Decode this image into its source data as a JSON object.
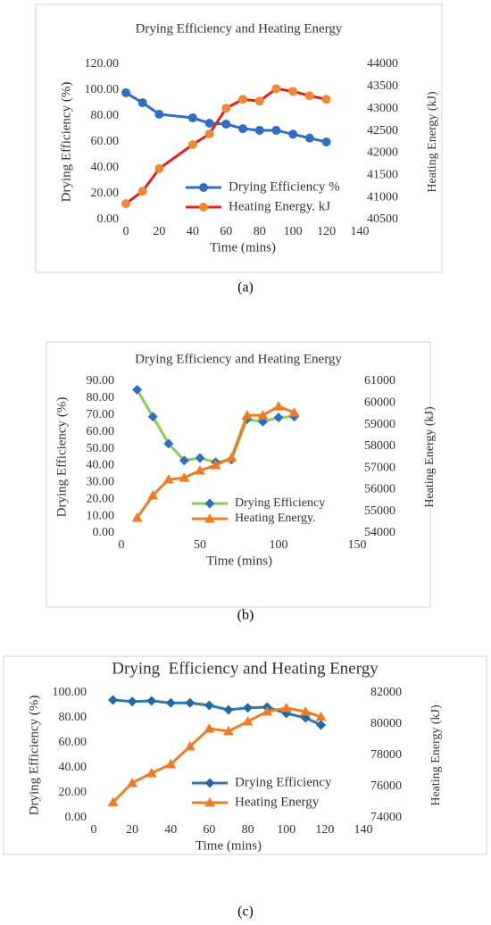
{
  "chart_data": [
    {
      "type": "line",
      "title": "Drying Efficiency and Heating Energy",
      "panel_label": "(a)",
      "xlabel": "Time (mins)",
      "ylabel": "Drying Efficiency (%)",
      "y2label": "Heating Energy (kJ)",
      "x": [
        0,
        10,
        20,
        40,
        50,
        60,
        70,
        80,
        90,
        100,
        110,
        120
      ],
      "xlim": [
        0,
        140
      ],
      "xticks": [
        0,
        20,
        40,
        60,
        80,
        100,
        120,
        140
      ],
      "ylim": [
        0,
        120
      ],
      "yticks": [
        {
          "value": 0,
          "label": "0.00"
        },
        {
          "value": 20,
          "label": "20.00"
        },
        {
          "value": 40,
          "label": "40.00"
        },
        {
          "value": 60,
          "label": "60.00"
        },
        {
          "value": 80,
          "label": "80.00"
        },
        {
          "value": 100,
          "label": "100.00"
        },
        {
          "value": 120,
          "label": "120.00"
        }
      ],
      "y2lim": [
        40500,
        44000
      ],
      "y2ticks": [
        40500,
        41000,
        41500,
        42000,
        42500,
        43000,
        43500,
        44000
      ],
      "series": [
        {
          "name": "Drying Efficiency %",
          "color": "#2e6fc4",
          "marker_color": "#2e6fc4",
          "marker": "circle",
          "values": [
            98,
            90.3,
            81.4,
            78.6,
            74.5,
            73.8,
            70.3,
            69,
            69,
            66,
            63,
            60
          ]
        },
        {
          "name": "Heating Energy. kJ",
          "color": "#e3211c",
          "marker_color": "#f08a30",
          "marker": "circle",
          "axis": "y2",
          "values": [
            40860,
            41140,
            41650,
            42190,
            42430,
            43010,
            43210,
            43170,
            43450,
            43390,
            43290,
            43210
          ]
        }
      ]
    },
    {
      "type": "line",
      "title": "Drying Efficiency and Heating Energy",
      "panel_label": "(b)",
      "xlabel": "Time (mins)",
      "ylabel": "Drying Efficiency (%)",
      "y2label": "Heating Energy (kJ)",
      "x": [
        10,
        20,
        30,
        40,
        50,
        60,
        70,
        80,
        90,
        100,
        110
      ],
      "xlim": [
        0,
        150
      ],
      "xticks": [
        0,
        50,
        100,
        150
      ],
      "ylim": [
        0,
        90
      ],
      "yticks": [
        {
          "value": 0,
          "label": "0.00"
        },
        {
          "value": 10,
          "label": "10.00"
        },
        {
          "value": 20,
          "label": "20.00"
        },
        {
          "value": 30,
          "label": "30.00"
        },
        {
          "value": 40,
          "label": "40.00"
        },
        {
          "value": 50,
          "label": "50.00"
        },
        {
          "value": 60,
          "label": "60.00"
        },
        {
          "value": 70,
          "label": "70.00"
        },
        {
          "value": 80,
          "label": "80.00"
        },
        {
          "value": 90,
          "label": "90.00"
        }
      ],
      "y2lim": [
        54000,
        61000
      ],
      "y2ticks": [
        54000,
        55000,
        56000,
        57000,
        58000,
        59000,
        60000,
        61000
      ],
      "series": [
        {
          "name": "Drying Efficiency",
          "color": "#7fd34b",
          "marker_color": "#2e6fc4",
          "marker": "diamond",
          "values": [
            85,
            69,
            53,
            43,
            44.5,
            42,
            43.5,
            67.5,
            66,
            68.5,
            69
          ]
        },
        {
          "name": "Heating Energy.",
          "color": "#f07c22",
          "marker_color": "#f07c22",
          "marker": "triangle",
          "axis": "y2",
          "values": [
            54700,
            55730,
            56470,
            56550,
            56880,
            57130,
            57460,
            59430,
            59430,
            59840,
            59560
          ]
        }
      ]
    },
    {
      "type": "line",
      "title": "Drying  Efficiency and Heating Energy",
      "panel_label": "(c)",
      "xlabel": "Time (mins)",
      "ylabel": "Drying Efficiency (%)",
      "y2label": "Heating Energy (kJ)",
      "x": [
        10,
        20,
        30,
        40,
        50,
        60,
        70,
        80,
        90,
        100,
        110,
        118
      ],
      "xlim": [
        0,
        140
      ],
      "xticks": [
        0,
        20,
        40,
        60,
        80,
        100,
        120,
        140
      ],
      "ylim": [
        0,
        100
      ],
      "yticks": [
        {
          "value": 0,
          "label": "0.00"
        },
        {
          "value": 20,
          "label": "20.00"
        },
        {
          "value": 40,
          "label": "40.00"
        },
        {
          "value": 60,
          "label": "60.00"
        },
        {
          "value": 80,
          "label": "80.00"
        },
        {
          "value": 100,
          "label": "100.00"
        }
      ],
      "y2lim": [
        74000,
        82000
      ],
      "y2ticks": [
        74000,
        76000,
        78000,
        80000,
        82000
      ],
      "series": [
        {
          "name": "Drying Efficiency",
          "color": "#2a7ab0",
          "marker_color": "#1f6aa5",
          "marker": "diamond",
          "values": [
            94.3,
            93,
            93.6,
            92,
            92,
            90,
            86.4,
            88,
            88.6,
            83.6,
            80,
            74.3
          ]
        },
        {
          "name": "Heating Energy",
          "color": "#f07c22",
          "marker_color": "#f07c22",
          "marker": "triangle",
          "axis": "y2",
          "values": [
            75000,
            76230,
            76860,
            77430,
            78570,
            79710,
            79540,
            80170,
            80800,
            81030,
            80800,
            80460
          ]
        }
      ]
    }
  ]
}
